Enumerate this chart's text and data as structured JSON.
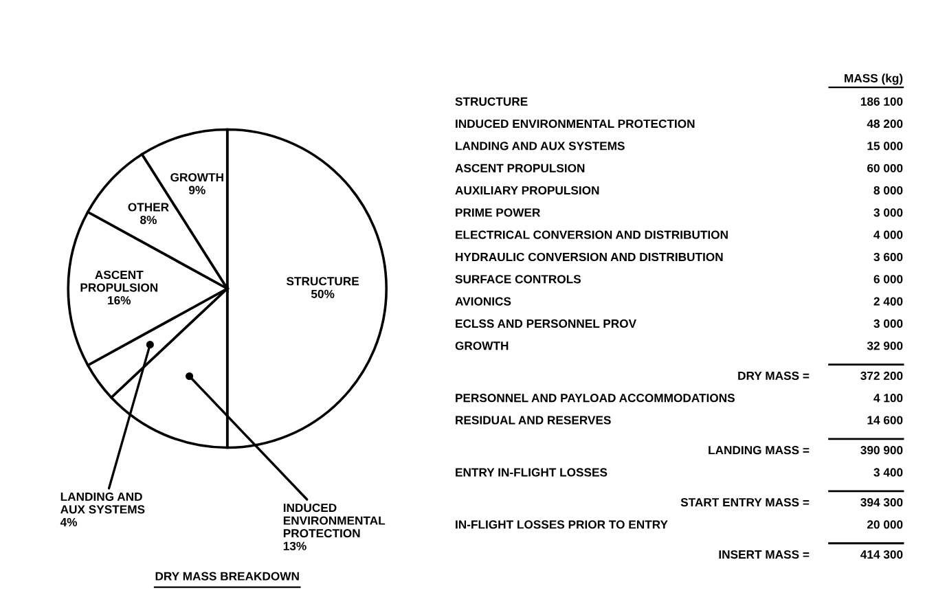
{
  "chart_data": [
    {
      "type": "pie",
      "title": "DRY MASS BREAKDOWN",
      "categories": [
        "STRUCTURE",
        "INDUCED\nENVIRONMENTAL\nPROTECTION",
        "LANDING AND\nAUX SYSTEMS",
        "ASCENT\nPROPULSION",
        "OTHER",
        "GROWTH"
      ],
      "values": [
        50,
        13,
        4,
        16,
        8,
        9
      ],
      "value_labels": [
        "50%",
        "13%",
        "4%",
        "16%",
        "8%",
        "9%"
      ],
      "colors": [
        "#ffffff",
        "#ffffff",
        "#ffffff",
        "#ffffff",
        "#ffffff",
        "#ffffff"
      ]
    },
    {
      "type": "other",
      "title": "MASS (kg)",
      "categories": [
        "STRUCTURE",
        "INDUCED ENVIRONMENTAL PROTECTION",
        "LANDING AND AUX SYSTEMS",
        "ASCENT PROPULSION",
        "AUXILIARY PROPULSION",
        "PRIME POWER",
        "ELECTRICAL CONVERSION AND DISTRIBUTION",
        "HYDRAULIC CONVERSION AND DISTRIBUTION",
        "SURFACE CONTROLS",
        "AVIONICS",
        "ECLSS AND PERSONNEL PROV",
        "GROWTH",
        "DRY MASS =",
        "PERSONNEL AND PAYLOAD ACCOMMODATIONS",
        "RESIDUAL AND RESERVES",
        "LANDING MASS =",
        "ENTRY IN-FLIGHT LOSSES",
        "START ENTRY MASS =",
        "IN-FLIGHT LOSSES PRIOR TO ENTRY",
        "INSERT MASS ="
      ],
      "value_labels": [
        "186 100",
        "48 200",
        "15 000",
        "60 000",
        "8 000",
        "3 000",
        "4 000",
        "3 600",
        "6 000",
        "2 400",
        "3 000",
        "32 900",
        "372 200",
        "4 100",
        "14 600",
        "390 900",
        "3 400",
        "394 300",
        "20 000",
        "414 300"
      ]
    }
  ]
}
